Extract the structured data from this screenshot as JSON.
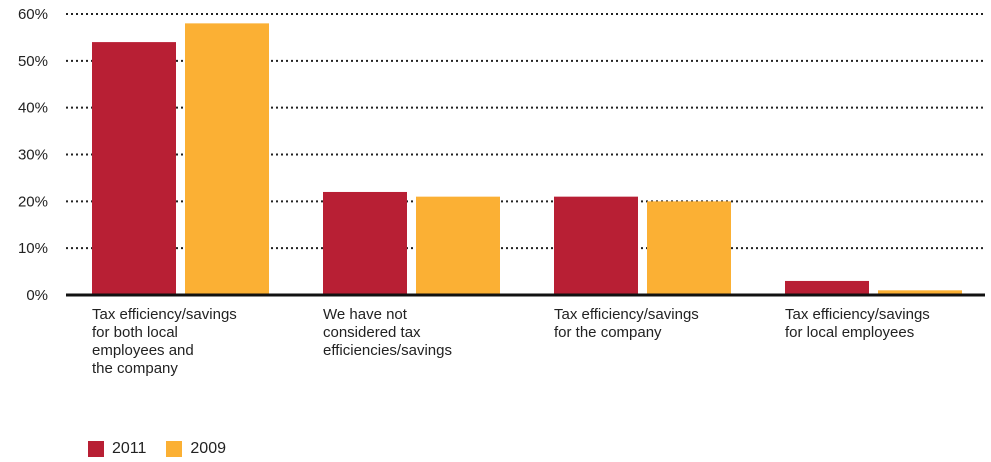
{
  "chart_data": {
    "type": "bar",
    "categories": [
      [
        "Tax efficiency/savings",
        "for both local",
        "employees and",
        "the company"
      ],
      [
        "We have not",
        "considered tax",
        "efficiencies/savings"
      ],
      [
        "Tax efficiency/savings",
        "for the company"
      ],
      [
        "Tax efficiency/savings",
        "for local employees"
      ]
    ],
    "series": [
      {
        "name": "2011",
        "color": "#b81f34",
        "values": [
          54,
          22,
          21,
          3
        ]
      },
      {
        "name": "2009",
        "color": "#fbb034",
        "values": [
          58,
          21,
          20,
          1
        ]
      }
    ],
    "ylim": [
      0,
      60
    ],
    "yticks": [
      0,
      10,
      20,
      30,
      40,
      50,
      60
    ],
    "ytick_labels": [
      "0%",
      "10%",
      "20%",
      "30%",
      "40%",
      "50%",
      "60%"
    ],
    "grid": true,
    "legend_position": "bottom-left"
  }
}
